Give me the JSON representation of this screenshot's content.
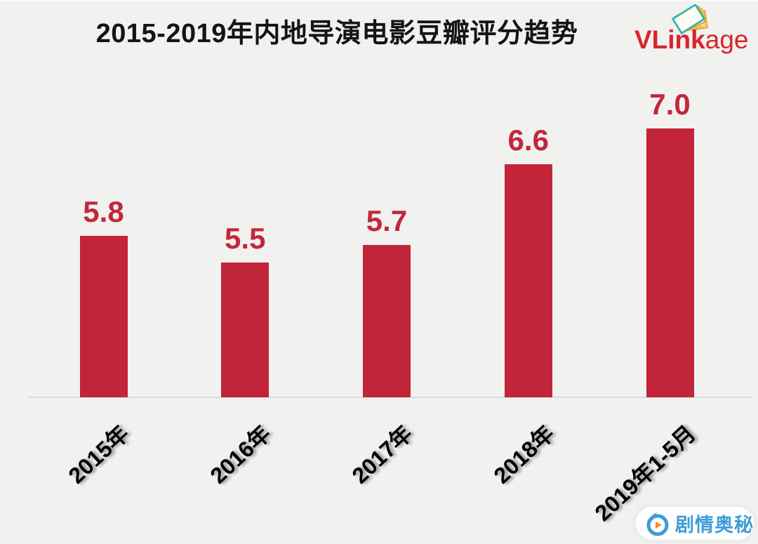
{
  "background_color": "#f1f1ef",
  "header": {
    "logo": {
      "text_bold": "VLink",
      "text_regular": "age",
      "color": "#d8262c",
      "icon": "photo-stack-icon"
    }
  },
  "chart_data": {
    "type": "bar",
    "title": "2015-2019年内地导演电影豆瓣评分趋势",
    "categories": [
      "2015年",
      "2016年",
      "2017年",
      "2018年",
      "2019年1-5月"
    ],
    "values": [
      5.8,
      5.5,
      5.7,
      6.6,
      7.0
    ],
    "value_labels": [
      "5.8",
      "5.5",
      "5.7",
      "6.6",
      "7.0"
    ],
    "xlabel": "",
    "ylabel": "",
    "ylim": [
      4.0,
      7.5
    ],
    "grid": false,
    "legend": false,
    "bar_color": "#c2243a",
    "value_label_color": "#c3273b",
    "category_label_color": "#000000",
    "axis_line_color": "#dcdcdc"
  },
  "watermark": {
    "text": "剧情奥秘",
    "color": "#3f9cd6",
    "icon": "droplet-play-icon"
  }
}
